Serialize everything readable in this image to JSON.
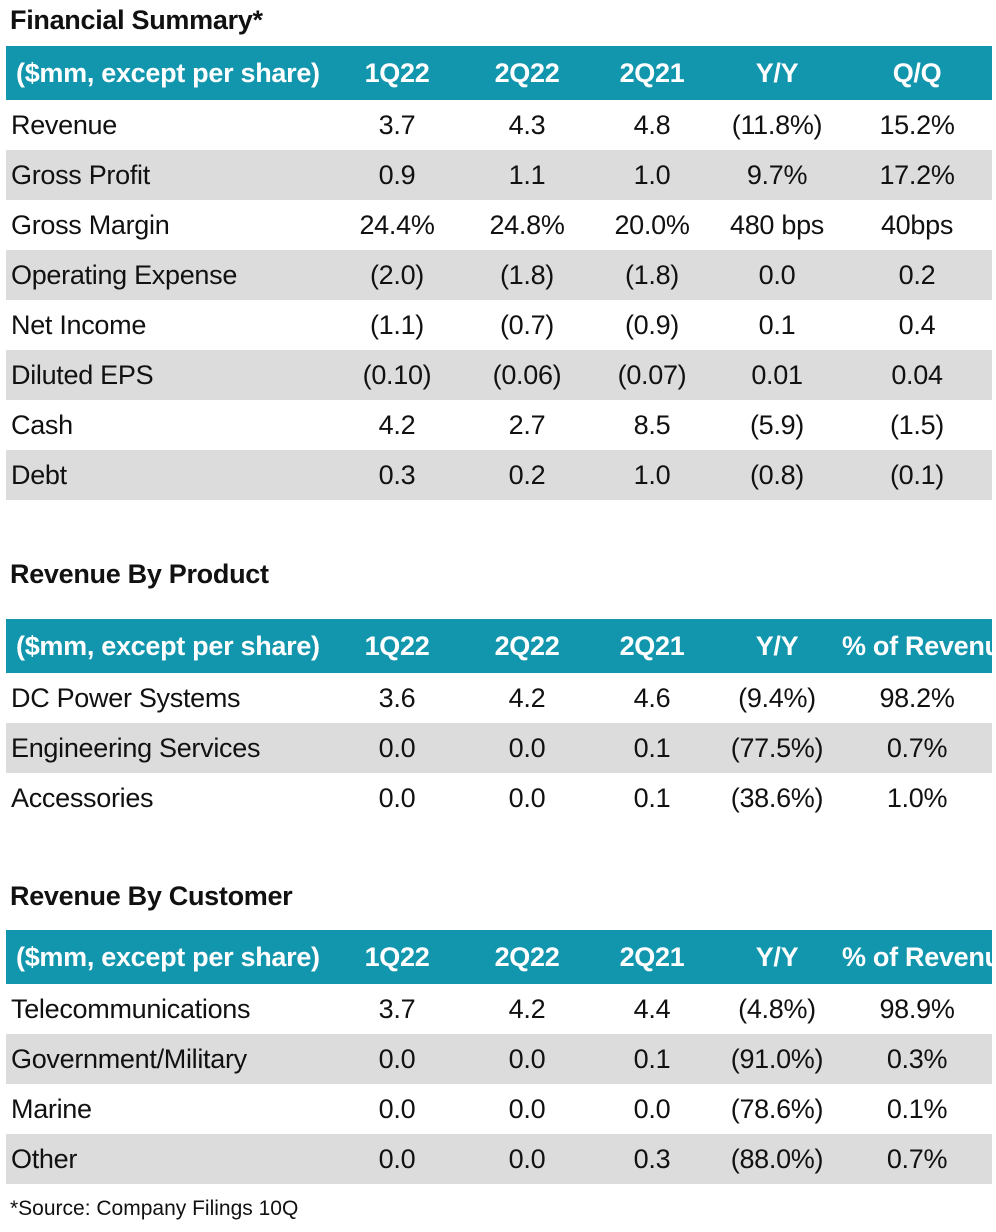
{
  "financial_summary": {
    "title": "Financial Summary*",
    "header": [
      "($mm, except per share)",
      "1Q22",
      "2Q22",
      "2Q21",
      "Y/Y",
      "Q/Q"
    ],
    "rows": [
      {
        "label": "Revenue",
        "values": [
          "3.7",
          "4.3",
          "4.8",
          "(11.8%)",
          "15.2%"
        ]
      },
      {
        "label": "Gross Profit",
        "values": [
          "0.9",
          "1.1",
          "1.0",
          "9.7%",
          "17.2%"
        ]
      },
      {
        "label": "Gross Margin",
        "values": [
          "24.4%",
          "24.8%",
          "20.0%",
          "480 bps",
          "40bps"
        ]
      },
      {
        "label": "Operating Expense",
        "values": [
          "(2.0)",
          "(1.8)",
          "(1.8)",
          "0.0",
          "0.2"
        ]
      },
      {
        "label": "Net Income",
        "values": [
          "(1.1)",
          "(0.7)",
          "(0.9)",
          "0.1",
          "0.4"
        ]
      },
      {
        "label": "Diluted EPS",
        "values": [
          "(0.10)",
          "(0.06)",
          "(0.07)",
          "0.01",
          "0.04"
        ]
      },
      {
        "label": "Cash",
        "values": [
          "4.2",
          "2.7",
          "8.5",
          "(5.9)",
          "(1.5)"
        ]
      },
      {
        "label": "Debt",
        "values": [
          "0.3",
          "0.2",
          "1.0",
          "(0.8)",
          "(0.1)"
        ]
      }
    ]
  },
  "revenue_by_product": {
    "title": "Revenue By Product",
    "header": [
      "($mm, except per share)",
      "1Q22",
      "2Q22",
      "2Q21",
      "Y/Y",
      "% of Revenue"
    ],
    "rows": [
      {
        "label": "DC Power Systems",
        "values": [
          "3.6",
          "4.2",
          "4.6",
          "(9.4%)",
          "98.2%"
        ]
      },
      {
        "label": "Engineering Services",
        "values": [
          "0.0",
          "0.0",
          "0.1",
          "(77.5%)",
          "0.7%"
        ]
      },
      {
        "label": "Accessories",
        "values": [
          "0.0",
          "0.0",
          "0.1",
          "(38.6%)",
          "1.0%"
        ]
      }
    ]
  },
  "revenue_by_customer": {
    "title": "Revenue By Customer",
    "header": [
      "($mm, except per share)",
      "1Q22",
      "2Q22",
      "2Q21",
      "Y/Y",
      "% of Revenue"
    ],
    "rows": [
      {
        "label": "Telecommunications",
        "values": [
          "3.7",
          "4.2",
          "4.4",
          "(4.8%)",
          "98.9%"
        ]
      },
      {
        "label": "Government/Military",
        "values": [
          "0.0",
          "0.0",
          "0.1",
          "(91.0%)",
          "0.3%"
        ]
      },
      {
        "label": "Marine",
        "values": [
          "0.0",
          "0.0",
          "0.0",
          "(78.6%)",
          "0.1%"
        ]
      },
      {
        "label": "Other",
        "values": [
          "0.0",
          "0.0",
          "0.3",
          "(88.0%)",
          "0.7%"
        ]
      }
    ]
  },
  "footnote": "*Source: Company Filings 10Q",
  "colors": {
    "header_background": "#1296ad",
    "header_text": "#ffffff",
    "shaded_row": "#dcdcdc"
  }
}
